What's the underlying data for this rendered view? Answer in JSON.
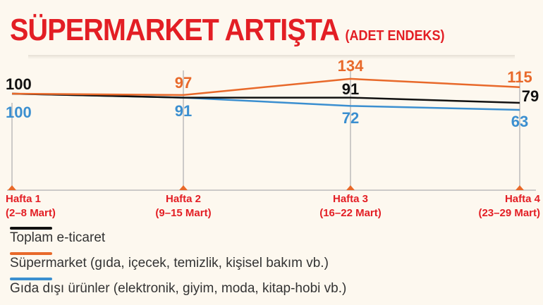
{
  "chart_data": {
    "type": "line",
    "title": "SÜPERMARKET ARTIŞTA",
    "subtitle": "(ADET ENDEKS)",
    "categories": [
      [
        "Hafta 1",
        "(2–8 Mart)"
      ],
      [
        "Hafta 2",
        "(9–15 Mart)"
      ],
      [
        "Hafta 3",
        "(16–22 Mart)"
      ],
      [
        "Hafta 4",
        "(23–29 Mart)"
      ]
    ],
    "series": [
      {
        "name": "Toplam e-ticaret",
        "color": "#111111",
        "values": [
          100,
          91,
          91,
          79
        ]
      },
      {
        "name": "Süpermarket (gıda, içecek, temizlik, kişisel bakım vb.)",
        "color": "#e8692a",
        "values": [
          100,
          97,
          134,
          115
        ]
      },
      {
        "name": "Gıda dışı ürünler (elektronik, giyim, moda, kitap-hobi vb.)",
        "color": "#3b8fd0",
        "values": [
          100,
          91,
          72,
          63
        ]
      }
    ],
    "grid": false,
    "legend": "bottom-left",
    "accent_color": "#e31e24"
  }
}
